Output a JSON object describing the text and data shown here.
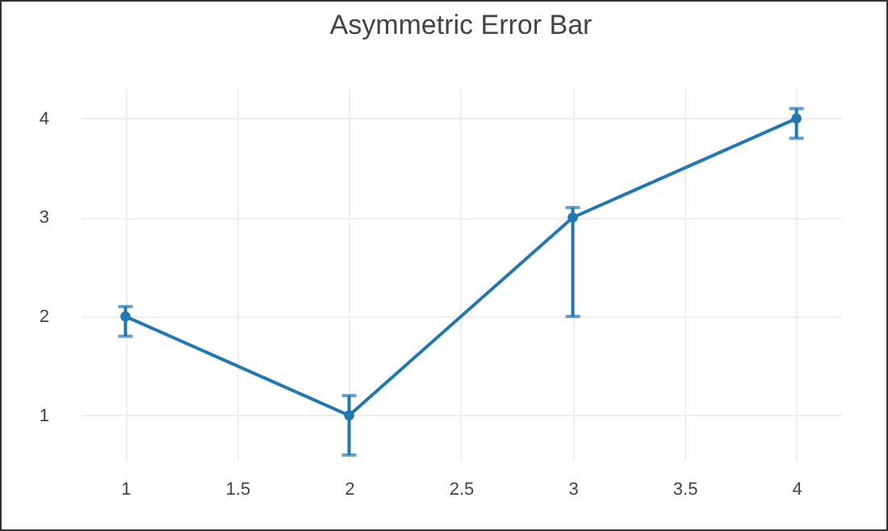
{
  "chart_data": {
    "type": "line",
    "title": "Asymmetric Error Bar",
    "x": [
      1,
      2,
      3,
      4
    ],
    "series": [
      {
        "color": "#1f77b4",
        "values": [
          2,
          1,
          3,
          4
        ],
        "errors": [
          [
            1.8,
            2.1
          ],
          [
            0.6,
            1.2
          ],
          [
            2,
            3.1
          ],
          [
            3.8,
            4.1
          ]
        ]
      }
    ],
    "xlim": [
      0.8,
      4.2
    ],
    "xticks": [
      1,
      1.5,
      2,
      2.5,
      3,
      3.5,
      4
    ],
    "ylim": [
      0.55,
      4.3
    ],
    "yticks": [
      1,
      2,
      3,
      4
    ],
    "grid": true,
    "marker": "circle",
    "line_style": "solid"
  }
}
